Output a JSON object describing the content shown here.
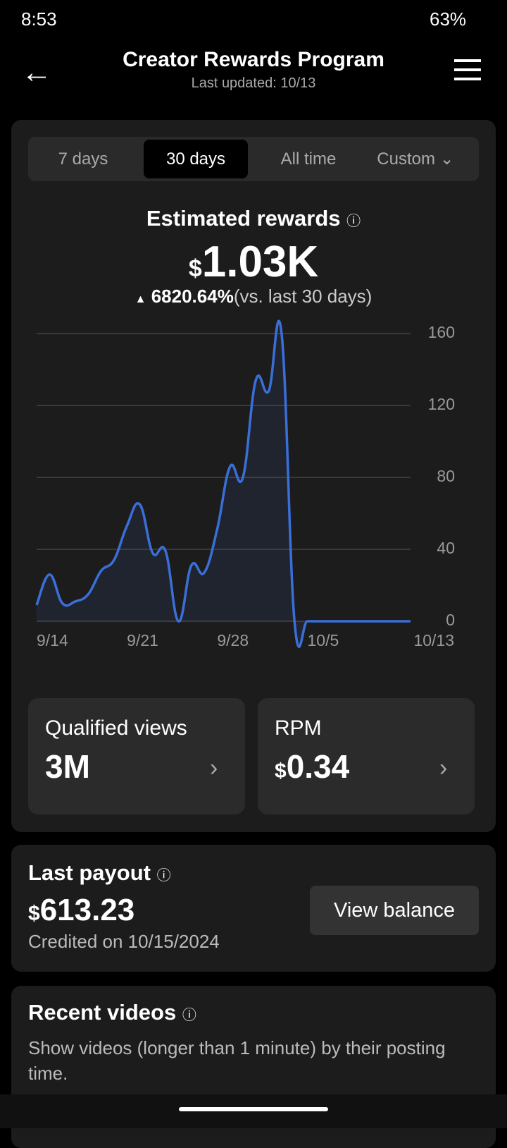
{
  "status_bar": {
    "time": "8:53",
    "battery": "63%"
  },
  "header": {
    "title": "Creator Rewards Program",
    "subtitle": "Last updated: 10/13"
  },
  "tabs": [
    "7 days",
    "30 days",
    "All time",
    "Custom"
  ],
  "rewards": {
    "title": "Estimated rewards",
    "currency": "$",
    "amount": "1.03K",
    "change": "6820.64%",
    "comparison": "(vs. last 30 days)"
  },
  "chart_data": {
    "type": "line",
    "categories": [
      "9/14",
      null,
      null,
      null,
      null,
      null,
      null,
      "9/21",
      null,
      null,
      null,
      null,
      null,
      null,
      "9/28",
      null,
      null,
      null,
      null,
      null,
      null,
      "10/5",
      null,
      null,
      null,
      null,
      null,
      null,
      null,
      "10/13"
    ],
    "series": [
      {
        "color": "#3a6fd8",
        "values": [
          9,
          26,
          10,
          11,
          15,
          28,
          34,
          53,
          65,
          38,
          39,
          0,
          31,
          27,
          51,
          86,
          80,
          134,
          128,
          160,
          0,
          0,
          0,
          0,
          0,
          0,
          0,
          0,
          0,
          0
        ]
      }
    ],
    "ylim": [
      0,
      160
    ],
    "yticks": [
      0,
      40,
      80,
      120,
      160
    ],
    "grid": true
  },
  "cards": [
    {
      "title": "Qualified views",
      "value": "3M"
    },
    {
      "title": "RPM",
      "currency": "$",
      "value": "0.34"
    }
  ],
  "payout": {
    "title": "Last payout",
    "currency": "$",
    "amount": "613.23",
    "credited": "Credited on 10/15/2024",
    "button": "View balance"
  },
  "recent": {
    "title": "Recent videos",
    "description": "Show videos (longer than 1 minute) by their posting time."
  }
}
